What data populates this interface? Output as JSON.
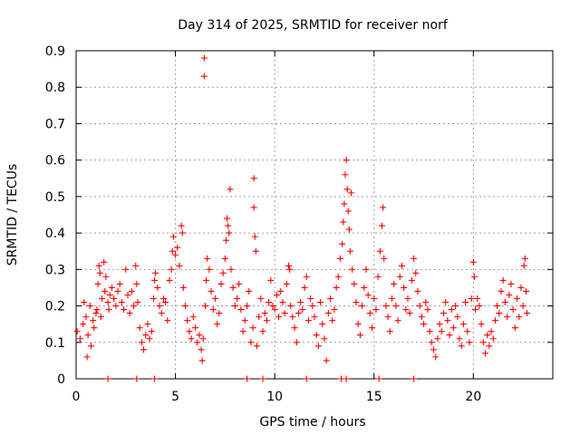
{
  "chart_data": {
    "type": "scatter",
    "title": "Day 314 of 2025, SRMTID for receiver norf",
    "xlabel": "GPS time / hours",
    "ylabel": "SRMTID / TECUs",
    "xlim": [
      0,
      24
    ],
    "ylim": [
      0,
      0.9
    ],
    "x_ticks": [
      0,
      5,
      10,
      15,
      20
    ],
    "x_tick_labels": [
      "0",
      "5",
      "10",
      "15",
      "20"
    ],
    "y_ticks": [
      0,
      0.1,
      0.2,
      0.3,
      0.4,
      0.5,
      0.6,
      0.7,
      0.8,
      0.9
    ],
    "y_tick_labels": [
      "0",
      "0.1",
      "0.2",
      "0.3",
      "0.4",
      "0.5",
      "0.6",
      "0.7",
      "0.8",
      "0.9"
    ],
    "grid": true,
    "marker": "+",
    "color": "#ff0000",
    "series": [
      {
        "name": "SRMTID",
        "points": [
          [
            0.05,
            0.13
          ],
          [
            0.2,
            0.11
          ],
          [
            0.35,
            0.15
          ],
          [
            0.5,
            0.17
          ],
          [
            0.6,
            0.12
          ],
          [
            0.75,
            0.09
          ],
          [
            0.9,
            0.14
          ],
          [
            1.0,
            0.18
          ],
          [
            1.1,
            0.26
          ],
          [
            1.15,
            0.31
          ],
          [
            1.2,
            0.29
          ],
          [
            1.3,
            0.22
          ],
          [
            1.4,
            0.32
          ],
          [
            1.5,
            0.28
          ],
          [
            1.6,
            0.21
          ],
          [
            1.7,
            0.23
          ],
          [
            0.4,
            0.21
          ],
          [
            0.55,
            0.06
          ],
          [
            0.7,
            0.2
          ],
          [
            0.85,
            0.16
          ],
          [
            1.05,
            0.19
          ],
          [
            1.25,
            0.17
          ],
          [
            1.45,
            0.24
          ],
          [
            1.65,
            0.19
          ],
          [
            1.8,
            0.25
          ],
          [
            1.9,
            0.22
          ],
          [
            2.0,
            0.2
          ],
          [
            2.1,
            0.24
          ],
          [
            2.2,
            0.26
          ],
          [
            2.3,
            0.21
          ],
          [
            2.4,
            0.19
          ],
          [
            2.5,
            0.3
          ],
          [
            2.6,
            0.23
          ],
          [
            2.7,
            0.18
          ],
          [
            2.8,
            0.24
          ],
          [
            2.9,
            0.2
          ],
          [
            3.0,
            0.31
          ],
          [
            3.05,
            0.26
          ],
          [
            3.1,
            0.21
          ],
          [
            3.2,
            0.14
          ],
          [
            3.3,
            0.1
          ],
          [
            3.4,
            0.08
          ],
          [
            3.5,
            0.12
          ],
          [
            3.6,
            0.15
          ],
          [
            3.7,
            0.11
          ],
          [
            3.8,
            0.13
          ],
          [
            3.9,
            0.22
          ],
          [
            3.95,
            0.27
          ],
          [
            4.0,
            0.29
          ],
          [
            4.1,
            0.25
          ],
          [
            4.2,
            0.2
          ],
          [
            4.3,
            0.18
          ],
          [
            4.4,
            0.22
          ],
          [
            4.5,
            0.21
          ],
          [
            4.6,
            0.16
          ],
          [
            4.7,
            0.27
          ],
          [
            4.8,
            0.3
          ],
          [
            4.85,
            0.35
          ],
          [
            4.9,
            0.39
          ],
          [
            5.0,
            0.34
          ],
          [
            5.1,
            0.36
          ],
          [
            5.2,
            0.31
          ],
          [
            5.3,
            0.42
          ],
          [
            5.35,
            0.4
          ],
          [
            5.4,
            0.25
          ],
          [
            5.5,
            0.2
          ],
          [
            5.6,
            0.16
          ],
          [
            5.7,
            0.13
          ],
          [
            5.8,
            0.11
          ],
          [
            5.9,
            0.17
          ],
          [
            6.0,
            0.14
          ],
          [
            6.1,
            0.1
          ],
          [
            6.2,
            0.12
          ],
          [
            6.3,
            0.08
          ],
          [
            6.35,
            0.05
          ],
          [
            6.4,
            0.11
          ],
          [
            6.5,
            0.2
          ],
          [
            6.55,
            0.27
          ],
          [
            6.6,
            0.33
          ],
          [
            6.7,
            0.3
          ],
          [
            6.45,
            0.83
          ],
          [
            6.45,
            0.88
          ],
          [
            6.8,
            0.24
          ],
          [
            6.9,
            0.19
          ],
          [
            7.0,
            0.22
          ],
          [
            7.1,
            0.15
          ],
          [
            7.2,
            0.18
          ],
          [
            7.3,
            0.26
          ],
          [
            7.4,
            0.29
          ],
          [
            7.5,
            0.33
          ],
          [
            7.55,
            0.38
          ],
          [
            7.6,
            0.44
          ],
          [
            7.65,
            0.42
          ],
          [
            7.7,
            0.4
          ],
          [
            7.75,
            0.52
          ],
          [
            7.8,
            0.3
          ],
          [
            7.9,
            0.25
          ],
          [
            8.0,
            0.2
          ],
          [
            8.1,
            0.22
          ],
          [
            8.2,
            0.26
          ],
          [
            8.3,
            0.19
          ],
          [
            8.4,
            0.13
          ],
          [
            8.5,
            0.16
          ],
          [
            8.6,
            0.2
          ],
          [
            8.7,
            0.24
          ],
          [
            8.8,
            0.1
          ],
          [
            8.9,
            0.14
          ],
          [
            8.95,
            0.47
          ],
          [
            8.95,
            0.55
          ],
          [
            9.0,
            0.39
          ],
          [
            9.05,
            0.35
          ],
          [
            9.1,
            0.09
          ],
          [
            9.2,
            0.17
          ],
          [
            9.3,
            0.22
          ],
          [
            9.4,
            0.13
          ],
          [
            9.5,
            0.18
          ],
          [
            9.6,
            0.16
          ],
          [
            9.7,
            0.21
          ],
          [
            9.8,
            0.27
          ],
          [
            9.9,
            0.2
          ],
          [
            10.0,
            0.19
          ],
          [
            10.1,
            0.23
          ],
          [
            10.2,
            0.17
          ],
          [
            10.3,
            0.24
          ],
          [
            10.4,
            0.21
          ],
          [
            10.5,
            0.18
          ],
          [
            10.6,
            0.26
          ],
          [
            10.7,
            0.31
          ],
          [
            10.75,
            0.3
          ],
          [
            10.8,
            0.2
          ],
          [
            10.9,
            0.17
          ],
          [
            11.0,
            0.14
          ],
          [
            11.1,
            0.1
          ],
          [
            11.2,
            0.18
          ],
          [
            11.3,
            0.21
          ],
          [
            11.4,
            0.19
          ],
          [
            11.5,
            0.25
          ],
          [
            11.6,
            0.28
          ],
          [
            11.7,
            0.16
          ],
          [
            11.8,
            0.22
          ],
          [
            11.9,
            0.2
          ],
          [
            12.0,
            0.17
          ],
          [
            12.1,
            0.12
          ],
          [
            12.2,
            0.09
          ],
          [
            12.3,
            0.21
          ],
          [
            12.4,
            0.15
          ],
          [
            12.5,
            0.11
          ],
          [
            12.6,
            0.05
          ],
          [
            12.7,
            0.18
          ],
          [
            12.8,
            0.22
          ],
          [
            12.9,
            0.16
          ],
          [
            13.0,
            0.19
          ],
          [
            13.1,
            0.25
          ],
          [
            13.2,
            0.28
          ],
          [
            13.3,
            0.33
          ],
          [
            13.4,
            0.37
          ],
          [
            13.45,
            0.43
          ],
          [
            13.5,
            0.48
          ],
          [
            13.55,
            0.56
          ],
          [
            13.6,
            0.6
          ],
          [
            13.65,
            0.52
          ],
          [
            13.7,
            0.46
          ],
          [
            13.75,
            0.41
          ],
          [
            13.8,
            0.35
          ],
          [
            13.85,
            0.51
          ],
          [
            13.9,
            0.3
          ],
          [
            14.0,
            0.26
          ],
          [
            14.1,
            0.21
          ],
          [
            14.2,
            0.15
          ],
          [
            14.3,
            0.12
          ],
          [
            14.4,
            0.2
          ],
          [
            14.5,
            0.25
          ],
          [
            14.6,
            0.3
          ],
          [
            14.7,
            0.23
          ],
          [
            14.8,
            0.18
          ],
          [
            14.9,
            0.14
          ],
          [
            15.0,
            0.22
          ],
          [
            15.1,
            0.19
          ],
          [
            15.2,
            0.28
          ],
          [
            15.3,
            0.35
          ],
          [
            15.4,
            0.42
          ],
          [
            15.45,
            0.47
          ],
          [
            15.5,
            0.33
          ],
          [
            15.6,
            0.2
          ],
          [
            15.7,
            0.17
          ],
          [
            15.8,
            0.13
          ],
          [
            15.9,
            0.22
          ],
          [
            16.0,
            0.26
          ],
          [
            16.1,
            0.2
          ],
          [
            16.2,
            0.16
          ],
          [
            16.3,
            0.28
          ],
          [
            16.4,
            0.31
          ],
          [
            16.5,
            0.25
          ],
          [
            16.6,
            0.19
          ],
          [
            16.7,
            0.22
          ],
          [
            16.8,
            0.18
          ],
          [
            16.9,
            0.27
          ],
          [
            17.0,
            0.33
          ],
          [
            17.1,
            0.29
          ],
          [
            17.2,
            0.24
          ],
          [
            17.3,
            0.2
          ],
          [
            17.4,
            0.17
          ],
          [
            17.5,
            0.15
          ],
          [
            17.6,
            0.21
          ],
          [
            17.7,
            0.19
          ],
          [
            17.8,
            0.13
          ],
          [
            17.9,
            0.1
          ],
          [
            18.0,
            0.08
          ],
          [
            18.1,
            0.06
          ],
          [
            18.2,
            0.11
          ],
          [
            18.3,
            0.15
          ],
          [
            18.4,
            0.13
          ],
          [
            18.5,
            0.18
          ],
          [
            18.6,
            0.21
          ],
          [
            18.7,
            0.16
          ],
          [
            18.8,
            0.12
          ],
          [
            18.9,
            0.19
          ],
          [
            19.0,
            0.14
          ],
          [
            19.1,
            0.2
          ],
          [
            19.2,
            0.17
          ],
          [
            19.3,
            0.11
          ],
          [
            19.4,
            0.09
          ],
          [
            19.5,
            0.15
          ],
          [
            19.6,
            0.21
          ],
          [
            19.7,
            0.13
          ],
          [
            19.8,
            0.1
          ],
          [
            19.9,
            0.22
          ],
          [
            20.0,
            0.32
          ],
          [
            20.05,
            0.28
          ],
          [
            20.1,
            0.19
          ],
          [
            20.2,
            0.22
          ],
          [
            20.3,
            0.2
          ],
          [
            20.4,
            0.15
          ],
          [
            20.5,
            0.1
          ],
          [
            20.6,
            0.07
          ],
          [
            20.7,
            0.12
          ],
          [
            20.8,
            0.09
          ],
          [
            20.9,
            0.13
          ],
          [
            21.0,
            0.11
          ],
          [
            21.1,
            0.16
          ],
          [
            21.2,
            0.2
          ],
          [
            21.3,
            0.18
          ],
          [
            21.4,
            0.24
          ],
          [
            21.5,
            0.27
          ],
          [
            21.6,
            0.21
          ],
          [
            21.7,
            0.17
          ],
          [
            21.8,
            0.23
          ],
          [
            21.9,
            0.26
          ],
          [
            22.0,
            0.19
          ],
          [
            22.1,
            0.14
          ],
          [
            22.2,
            0.22
          ],
          [
            22.3,
            0.17
          ],
          [
            22.4,
            0.25
          ],
          [
            22.5,
            0.2
          ],
          [
            22.55,
            0.31
          ],
          [
            22.6,
            0.33
          ],
          [
            22.65,
            0.24
          ],
          [
            22.7,
            0.18
          ],
          [
            1.6,
            0.0
          ],
          [
            3.05,
            0.0
          ],
          [
            3.95,
            0.0
          ],
          [
            8.6,
            0.0
          ],
          [
            9.4,
            0.0
          ],
          [
            11.6,
            0.0
          ],
          [
            13.35,
            0.0
          ],
          [
            13.6,
            0.0
          ],
          [
            15.25,
            0.0
          ],
          [
            17.0,
            0.0
          ]
        ]
      }
    ]
  }
}
